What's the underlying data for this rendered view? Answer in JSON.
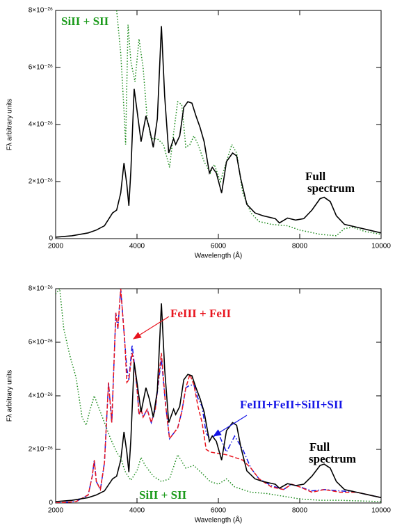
{
  "chart_data": [
    {
      "type": "line",
      "xlabel": "Wavelength (Å)",
      "ylabel": "Fλ arbitrary units",
      "xlim": [
        2000,
        10000
      ],
      "xticks": [
        2000,
        4000,
        6000,
        8000,
        10000
      ],
      "ylim": [
        0,
        8e-26
      ],
      "yticks": [
        0,
        {
          "value": 2e-26,
          "label": "2×10⁻²⁶"
        },
        {
          "value": 4e-26,
          "label": "4×10⁻²⁶"
        },
        {
          "value": 6e-26,
          "label": "6×10⁻²⁶"
        },
        {
          "value": 8e-26,
          "label": "8×10⁻²⁶"
        }
      ],
      "series": [
        {
          "color": "#000000",
          "style": "solid",
          "x": [
            2000,
            2400,
            2800,
            3000,
            3200,
            3400,
            3500,
            3600,
            3680,
            3750,
            3800,
            3850,
            3930,
            4000,
            4100,
            4220,
            4300,
            4400,
            4500,
            4600,
            4680,
            4780,
            4900,
            4950,
            5050,
            5150,
            5250,
            5350,
            5450,
            5550,
            5650,
            5780,
            5850,
            5950,
            6080,
            6200,
            6350,
            6450,
            6550,
            6700,
            6900,
            7100,
            7400,
            7500,
            7700,
            7900,
            8100,
            8300,
            8500,
            8600,
            8750,
            8900,
            9100,
            9400,
            9700,
            10000
          ],
          "values": [
            5e-28,
            1e-27,
            2e-27,
            3e-27,
            4.5e-27,
            9e-27,
            1e-26,
            1.6e-26,
            2.65e-26,
            1.9e-26,
            1.15e-26,
            2.4e-26,
            5.25e-26,
            4.5e-26,
            3.4e-26,
            4.3e-26,
            3.9e-26,
            3.2e-26,
            4.2e-26,
            7.45e-26,
            5e-26,
            3e-26,
            3.5e-26,
            3.3e-26,
            3.6e-26,
            4.6e-26,
            4.8e-26,
            4.75e-26,
            4.3e-26,
            3.9e-26,
            3.4e-26,
            2.3e-26,
            2.5e-26,
            2.3e-26,
            1.6e-26,
            2.7e-26,
            3e-26,
            2.9e-26,
            2.1e-26,
            1.2e-26,
            9e-27,
            8e-27,
            7e-27,
            5.5e-27,
            7.2e-27,
            6.5e-27,
            7e-27,
            1e-26,
            1.4e-26,
            1.45e-26,
            1.3e-26,
            8e-27,
            5e-27,
            4e-27,
            3e-27,
            2e-27
          ]
        },
        {
          "color": "#1a8a1a",
          "style": "dotted",
          "x": [
            3500,
            3600,
            3680,
            3720,
            3780,
            3850,
            3950,
            4050,
            4150,
            4250,
            4350,
            4500,
            4650,
            4800,
            4900,
            5000,
            5100,
            5200,
            5300,
            5400,
            5500,
            5650,
            5800,
            5900,
            6050,
            6200,
            6330,
            6450,
            6600,
            6800,
            7000,
            7300,
            7700,
            8000,
            8500,
            8900,
            9100,
            9300,
            9600,
            10000
          ],
          "values": [
            8e-26,
            6.5e-26,
            4.5e-26,
            3.3e-26,
            7.5e-26,
            6.2e-26,
            5.5e-26,
            7e-26,
            6e-26,
            4.2e-26,
            3.5e-26,
            3.5e-26,
            3.3e-26,
            2.5e-26,
            3.7e-26,
            4.8e-26,
            4.7e-26,
            3.2e-26,
            3.3e-26,
            3.6e-26,
            3.3e-26,
            2.7e-26,
            2.3e-26,
            2.6e-26,
            2e-26,
            2.7e-26,
            3.3e-26,
            3e-26,
            1.6e-26,
            9e-27,
            6e-27,
            5e-27,
            4.5e-27,
            3e-27,
            1.5e-27,
            1e-27,
            3.5e-27,
            4e-27,
            2.5e-27,
            1.5e-27
          ]
        }
      ],
      "annotations": [
        {
          "text": "SiII + SII",
          "color": "#1a9a1a"
        },
        {
          "text": "Full",
          "color": "#000000"
        },
        {
          "text": "spectrum",
          "color": "#000000"
        }
      ]
    },
    {
      "type": "line",
      "xlabel": "Wavelength (Å)",
      "ylabel": "Fλ arbitrary units",
      "xlim": [
        2000,
        10000
      ],
      "xticks": [
        2000,
        4000,
        6000,
        8000,
        10000
      ],
      "ylim": [
        0,
        8e-26
      ],
      "yticks": [
        0,
        {
          "value": 2e-26,
          "label": "2×10⁻²⁶"
        },
        {
          "value": 4e-26,
          "label": "4×10⁻²⁶"
        },
        {
          "value": 6e-26,
          "label": "6×10⁻²⁶"
        },
        {
          "value": 8e-26,
          "label": "8×10⁻²⁶"
        }
      ],
      "series": [
        {
          "color": "#1a8a1a",
          "style": "dotted",
          "x": [
            2000,
            2100,
            2200,
            2350,
            2500,
            2650,
            2750,
            2850,
            2950,
            3050,
            3200,
            3350,
            3500,
            3620,
            3700,
            3780,
            3850,
            4000,
            4100,
            4200,
            4400,
            4600,
            4800,
            5000,
            5200,
            5400,
            5600,
            5800,
            6000,
            6200,
            6400,
            6800,
            7200,
            7600,
            8000,
            8500,
            9000,
            10000
          ],
          "values": [
            7.8e-26,
            8e-26,
            6.5e-26,
            5.5e-26,
            4.7e-26,
            3.2e-26,
            2.9e-26,
            3.5e-26,
            4e-26,
            3.6e-26,
            3e-26,
            2.4e-26,
            1.9e-26,
            1.6e-26,
            1.2e-26,
            1e-26,
            8.5e-27,
            1.2e-26,
            1.7e-26,
            1.4e-26,
            1e-26,
            8e-27,
            9e-27,
            1.8e-26,
            1.3e-26,
            1.4e-26,
            1.1e-26,
            8e-27,
            7e-27,
            9e-27,
            6e-27,
            4e-27,
            3.5e-27,
            2.5e-27,
            1.5e-27,
            1e-27,
            1e-27,
            5e-28
          ]
        },
        {
          "color": "#000000",
          "style": "solid",
          "x": [
            2000,
            2400,
            2800,
            3000,
            3200,
            3400,
            3500,
            3600,
            3680,
            3750,
            3800,
            3850,
            3930,
            4000,
            4100,
            4220,
            4300,
            4400,
            4500,
            4600,
            4680,
            4780,
            4900,
            4950,
            5050,
            5150,
            5250,
            5350,
            5450,
            5550,
            5650,
            5780,
            5850,
            5950,
            6080,
            6200,
            6350,
            6450,
            6550,
            6700,
            6900,
            7100,
            7400,
            7500,
            7700,
            7900,
            8100,
            8300,
            8500,
            8600,
            8750,
            8900,
            9100,
            9400,
            9700,
            10000
          ],
          "values": [
            5e-28,
            1e-27,
            2e-27,
            3e-27,
            4.5e-27,
            9e-27,
            1e-26,
            1.6e-26,
            2.65e-26,
            1.9e-26,
            1.15e-26,
            2.4e-26,
            5.25e-26,
            4.5e-26,
            3.4e-26,
            4.3e-26,
            3.9e-26,
            3.2e-26,
            4.2e-26,
            7.45e-26,
            5e-26,
            3e-26,
            3.5e-26,
            3.3e-26,
            3.6e-26,
            4.6e-26,
            4.8e-26,
            4.75e-26,
            4.3e-26,
            3.9e-26,
            3.4e-26,
            2.3e-26,
            2.5e-26,
            2.3e-26,
            1.6e-26,
            2.7e-26,
            3e-26,
            2.9e-26,
            2.1e-26,
            1.2e-26,
            9e-27,
            8e-27,
            7e-27,
            5.5e-27,
            7.2e-27,
            6.5e-27,
            7e-27,
            1e-26,
            1.4e-26,
            1.45e-26,
            1.3e-26,
            8e-27,
            5e-27,
            4e-27,
            3e-27,
            2e-27
          ]
        },
        {
          "color": "#e8141e",
          "style": "dashed",
          "x": [
            2000,
            2500,
            2800,
            2900,
            2950,
            3000,
            3100,
            3200,
            3300,
            3380,
            3480,
            3530,
            3600,
            3700,
            3750,
            3800,
            3880,
            3950,
            4000,
            4050,
            4100,
            4150,
            4250,
            4350,
            4450,
            4600,
            4700,
            4800,
            4900,
            5000,
            5100,
            5200,
            5300,
            5400,
            5500,
            5600,
            5700,
            5800,
            6000,
            6200,
            6400,
            6600,
            6800,
            7000,
            7300,
            7600,
            7800,
            8000,
            8300,
            8600,
            9000,
            9400,
            9700,
            10000
          ],
          "values": [
            0,
            5e-28,
            3e-27,
            1e-26,
            1.6e-26,
            8e-27,
            5e-27,
            1.5e-26,
            4.5e-26,
            3e-26,
            7.1e-26,
            6.5e-26,
            8e-26,
            6e-26,
            4.5e-26,
            4.6e-26,
            5.6e-26,
            5e-26,
            4.3e-26,
            3.3e-26,
            3.5e-26,
            3.2e-26,
            3.5e-26,
            3e-26,
            3.5e-26,
            5.6e-26,
            3.7e-26,
            2.4e-26,
            2.6e-26,
            2.8e-26,
            3.4e-26,
            4.3e-26,
            4.8e-26,
            4.4e-26,
            3.6e-26,
            3e-26,
            2e-26,
            1.9e-26,
            1.85e-26,
            1.8e-26,
            1.7e-26,
            1.6e-26,
            1.3e-26,
            9e-27,
            6e-27,
            5e-27,
            7e-27,
            6e-27,
            4e-27,
            5e-27,
            4e-27,
            4e-27,
            3e-27,
            2e-27
          ]
        },
        {
          "color": "#1414e6",
          "style": "dashdot",
          "x": [
            2000,
            2500,
            2800,
            2900,
            2950,
            3000,
            3100,
            3200,
            3300,
            3380,
            3480,
            3530,
            3600,
            3700,
            3750,
            3800,
            3880,
            3950,
            4000,
            4050,
            4100,
            4150,
            4250,
            4350,
            4450,
            4600,
            4700,
            4800,
            4900,
            5000,
            5100,
            5200,
            5300,
            5400,
            5500,
            5600,
            5700,
            5800,
            6000,
            6200,
            6400,
            6600,
            6800,
            7000,
            7300,
            7600,
            7800,
            8000,
            8300,
            8600,
            9000,
            9400,
            9700,
            10000
          ],
          "values": [
            0,
            5e-28,
            3e-27,
            1e-26,
            1.6e-26,
            8e-27,
            5e-27,
            1.5e-26,
            4.5e-26,
            3e-26,
            7.1e-26,
            6.5e-26,
            8e-26,
            6e-26,
            5e-26,
            4.6e-26,
            5.9e-26,
            5e-26,
            4.3e-26,
            3.3e-26,
            3.5e-26,
            3.2e-26,
            3.5e-26,
            3e-26,
            3.5e-26,
            5.4e-26,
            3.7e-26,
            2.4e-26,
            2.6e-26,
            2.8e-26,
            3.4e-26,
            4.3e-26,
            4.4e-26,
            4.4e-26,
            3.9e-26,
            3.6e-26,
            2.6e-26,
            2.4e-26,
            2.6e-26,
            1.9e-26,
            2.5e-26,
            2e-26,
            1.3e-26,
            9e-27,
            6.5e-27,
            5e-27,
            7e-27,
            6e-27,
            4.5e-27,
            5e-27,
            4.5e-27,
            4e-27,
            3e-27,
            2e-27
          ]
        }
      ],
      "annotations": [
        {
          "text": "FeIII + FeII",
          "color": "#e8141e"
        },
        {
          "text": "FeIII+FeII+SiII+SII",
          "color": "#1414e6"
        },
        {
          "text": "Full",
          "color": "#000000"
        },
        {
          "text": "spectrum",
          "color": "#000000"
        },
        {
          "text": "SiII + SII",
          "color": "#1a9a1a"
        }
      ]
    }
  ]
}
